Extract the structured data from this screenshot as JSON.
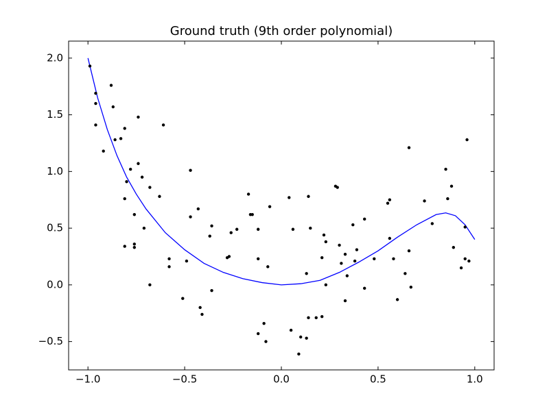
{
  "chart_data": {
    "type": "scatter",
    "title": "Ground truth (9th order polynomial)",
    "xlim": [
      -1.1,
      1.1
    ],
    "ylim": [
      -0.75,
      2.15
    ],
    "xticks": [
      {
        "value": -1.0,
        "label": "−1.0"
      },
      {
        "value": -0.5,
        "label": "−0.5"
      },
      {
        "value": 0.0,
        "label": "0.0"
      },
      {
        "value": 0.5,
        "label": "0.5"
      },
      {
        "value": 1.0,
        "label": "1.0"
      }
    ],
    "yticks": [
      {
        "value": -0.5,
        "label": "−0.5"
      },
      {
        "value": 0.0,
        "label": "0.0"
      },
      {
        "value": 0.5,
        "label": "0.5"
      },
      {
        "value": 1.0,
        "label": "1.0"
      },
      {
        "value": 1.5,
        "label": "1.5"
      },
      {
        "value": 2.0,
        "label": "2.0"
      }
    ],
    "points": {
      "color": "#000000",
      "x": [
        -0.99,
        -0.96,
        -0.96,
        -0.96,
        -0.92,
        -0.88,
        -0.87,
        -0.86,
        -0.83,
        -0.81,
        -0.81,
        -0.8,
        -0.78,
        -0.81,
        -0.76,
        -0.76,
        -0.76,
        -0.74,
        -0.74,
        -0.72,
        -0.71,
        -0.68,
        -0.68,
        -0.63,
        -0.61,
        -0.58,
        -0.58,
        -0.51,
        -0.49,
        -0.47,
        -0.47,
        -0.43,
        -0.42,
        -0.41,
        -0.37,
        -0.36,
        -0.36,
        -0.28,
        -0.27,
        -0.26,
        -0.23,
        -0.17,
        -0.16,
        -0.15,
        -0.12,
        -0.12,
        -0.12,
        -0.09,
        -0.08,
        -0.07,
        -0.06,
        0.04,
        0.05,
        0.06,
        0.09,
        0.1,
        0.13,
        0.13,
        0.14,
        0.14,
        0.15,
        0.18,
        0.21,
        0.21,
        0.22,
        0.23,
        0.23,
        0.28,
        0.29,
        0.3,
        0.31,
        0.33,
        0.33,
        0.34,
        0.37,
        0.38,
        0.39,
        0.43,
        0.43,
        0.48,
        0.55,
        0.56,
        0.56,
        0.58,
        0.6,
        0.64,
        0.66,
        0.66,
        0.67,
        0.74,
        0.78,
        0.85,
        0.86,
        0.88,
        0.89,
        0.93,
        0.96,
        0.95,
        0.95,
        0.97
      ],
      "y": [
        1.93,
        1.69,
        1.6,
        1.41,
        1.18,
        1.76,
        1.57,
        1.28,
        1.29,
        1.38,
        0.76,
        0.91,
        1.02,
        0.34,
        0.62,
        0.36,
        0.33,
        1.48,
        1.07,
        0.95,
        0.5,
        0.86,
        0.0,
        0.78,
        1.41,
        0.23,
        0.16,
        -0.12,
        0.21,
        1.01,
        0.6,
        0.67,
        -0.2,
        -0.26,
        0.43,
        0.52,
        -0.05,
        0.24,
        0.25,
        0.46,
        0.49,
        0.8,
        0.62,
        0.62,
        0.49,
        0.23,
        -0.43,
        -0.34,
        -0.5,
        0.16,
        0.69,
        0.77,
        -0.4,
        0.49,
        -0.61,
        -0.46,
        0.1,
        -0.47,
        0.78,
        -0.29,
        0.5,
        -0.29,
        0.24,
        -0.28,
        0.44,
        0.38,
        0.0,
        0.87,
        0.86,
        0.35,
        0.19,
        0.27,
        -0.14,
        0.08,
        0.53,
        0.21,
        0.31,
        0.58,
        -0.03,
        0.23,
        0.72,
        0.75,
        0.41,
        0.23,
        -0.13,
        0.1,
        0.3,
        1.21,
        -0.02,
        0.74,
        0.54,
        1.02,
        0.76,
        0.87,
        0.33,
        0.15,
        1.28,
        0.51,
        0.23,
        0.21
      ]
    },
    "curve": {
      "color": "#0000ff",
      "x": [
        -1.0,
        -0.95,
        -0.9,
        -0.85,
        -0.8,
        -0.75,
        -0.7,
        -0.6,
        -0.5,
        -0.4,
        -0.3,
        -0.2,
        -0.1,
        0.0,
        0.1,
        0.2,
        0.3,
        0.4,
        0.5,
        0.6,
        0.7,
        0.8,
        0.85,
        0.9,
        0.95,
        1.0
      ],
      "y": [
        2.0,
        1.65,
        1.37,
        1.14,
        0.95,
        0.8,
        0.67,
        0.46,
        0.31,
        0.19,
        0.11,
        0.055,
        0.02,
        0.0,
        0.01,
        0.04,
        0.11,
        0.2,
        0.3,
        0.42,
        0.53,
        0.62,
        0.635,
        0.61,
        0.53,
        0.4
      ]
    }
  }
}
